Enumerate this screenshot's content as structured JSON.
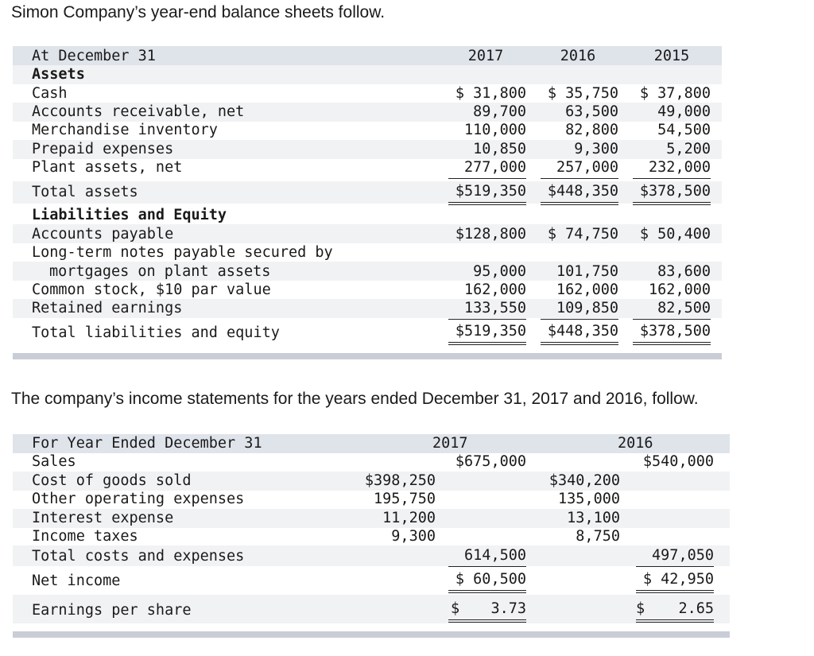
{
  "intro_balance": "Simon Company’s year-end balance sheets follow.",
  "intro_income": "The company’s income statements for the years ended December 31, 2017 and 2016, follow.",
  "balance_sheet": {
    "header": {
      "label": "At December 31",
      "y2017": "2017",
      "y2016": "2016",
      "y2015": "2015"
    },
    "assets_heading": "Assets",
    "assets": [
      {
        "label": "Cash",
        "v2017": "$ 31,800",
        "v2016": "$ 35,750",
        "v2015": "$ 37,800"
      },
      {
        "label": "Accounts receivable, net",
        "v2017": "89,700",
        "v2016": "63,500",
        "v2015": "49,000"
      },
      {
        "label": "Merchandise inventory",
        "v2017": "110,000",
        "v2016": "82,800",
        "v2015": "54,500"
      },
      {
        "label": "Prepaid expenses",
        "v2017": "10,850",
        "v2016": "9,300",
        "v2015": "5,200"
      },
      {
        "label": "Plant assets, net",
        "v2017": "277,000",
        "v2016": "257,000",
        "v2015": "232,000"
      }
    ],
    "total_assets": {
      "label": "Total assets",
      "v2017": "$519,350",
      "v2016": "$448,350",
      "v2015": "$378,500"
    },
    "liab_heading": "Liabilities and Equity",
    "accounts_payable": {
      "label": "Accounts payable",
      "v2017": "$128,800",
      "v2016": "$ 74,750",
      "v2015": "$ 50,400"
    },
    "long_term_notes": {
      "label_line1": "Long-term notes payable secured by",
      "label_line2": "mortgages on plant assets",
      "v2017": "95,000",
      "v2016": "101,750",
      "v2015": "83,600"
    },
    "common_stock": {
      "label": "Common stock, $10 par value",
      "v2017": "162,000",
      "v2016": "162,000",
      "v2015": "162,000"
    },
    "retained_earnings": {
      "label": "Retained earnings",
      "v2017": "133,550",
      "v2016": "109,850",
      "v2015": "82,500"
    },
    "total_liab_equity": {
      "label": "Total liabilities and equity",
      "v2017": "$519,350",
      "v2016": "$448,350",
      "v2015": "$378,500"
    }
  },
  "income_statement": {
    "header": {
      "label": "For Year Ended December 31",
      "y2017": "2017",
      "y2016": "2016"
    },
    "sales": {
      "label": "Sales",
      "v2017": "$675,000",
      "v2016": "$540,000"
    },
    "costs": [
      {
        "label": "Cost of goods sold",
        "v2017": "$398,250",
        "v2016": "$340,200"
      },
      {
        "label": "Other operating expenses",
        "v2017": "195,750",
        "v2016": "135,000"
      },
      {
        "label": "Interest expense",
        "v2017": "11,200",
        "v2016": "13,100"
      },
      {
        "label": "Income taxes",
        "v2017": "9,300",
        "v2016": "8,750"
      }
    ],
    "total_costs": {
      "label": "Total costs and expenses",
      "v2017": "614,500",
      "v2016": "497,050"
    },
    "net_income": {
      "label": "Net income",
      "v2017": "$ 60,500",
      "v2016": "$ 42,950"
    },
    "eps": {
      "label": "Earnings per share",
      "cur2017": "$",
      "v2017": "3.73",
      "cur2016": "$",
      "v2016": "2.65"
    }
  }
}
